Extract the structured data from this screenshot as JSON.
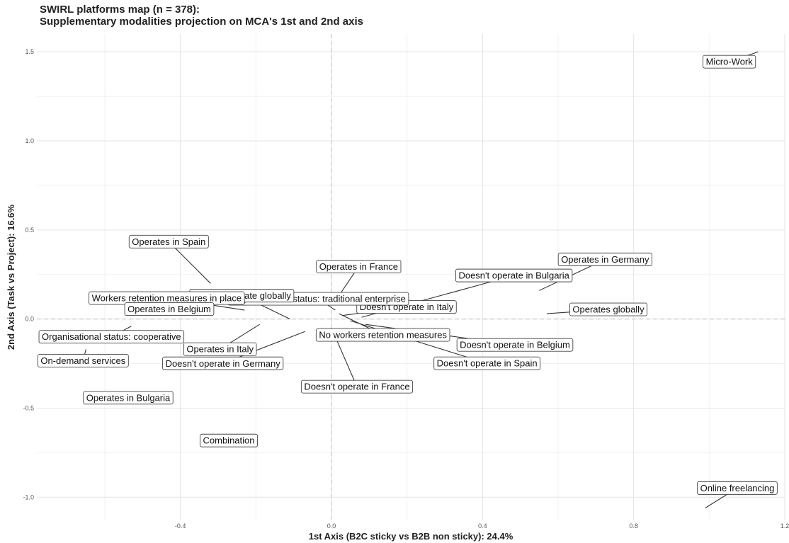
{
  "chart_data": {
    "type": "scatter",
    "title": "SWIRL platforms map (n = 378):",
    "subtitle": "Supplementary modalities projection on MCA's 1st and 2nd axis",
    "xlabel": "1st Axis (B2C sticky vs B2B non sticky): 24.4%",
    "ylabel": "2nd Axis (Task vs Project): 16.6%",
    "xlim": [
      -0.78,
      1.2
    ],
    "ylim": [
      -1.13,
      1.6
    ],
    "x_ticks": [
      -0.4,
      0.0,
      0.4,
      0.8,
      1.2
    ],
    "x_tick_labels": [
      "-0.4",
      "0.0",
      "0.4",
      "0.8",
      "1.2"
    ],
    "y_ticks": [
      -1.0,
      -0.5,
      0.0,
      0.5,
      1.0,
      1.5
    ],
    "y_tick_labels": [
      "-1.0",
      "-0.5",
      "0.0",
      "0.5",
      "1.0",
      "1.5"
    ],
    "grid": true,
    "reference_lines": [
      0,
      0
    ],
    "points": [
      {
        "label": "Micro-Work",
        "x": 1.13,
        "y": 1.5
      },
      {
        "label": "Online freelancing",
        "x": 0.99,
        "y": -1.06
      },
      {
        "label": "Operates globally",
        "x": 0.57,
        "y": 0.03
      },
      {
        "label": "Operates in Germany",
        "x": 0.55,
        "y": 0.16
      },
      {
        "label": "Doesn't operate in Bulgaria",
        "x": 0.08,
        "y": 0.01
      },
      {
        "label": "Doesn't operate in Italy",
        "x": 0.03,
        "y": 0.02
      },
      {
        "label": "Doesn't operate in Belgium",
        "x": 0.09,
        "y": -0.03
      },
      {
        "label": "Doesn't operate in Spain",
        "x": 0.05,
        "y": -0.01
      },
      {
        "label": "No workers retention measures",
        "x": 0.02,
        "y": 0.03
      },
      {
        "label": "Doesn't operate in France",
        "x": 0.0,
        "y": -0.05
      },
      {
        "label": "Operates in France",
        "x": 0.01,
        "y": 0.1
      },
      {
        "label": "Organisational status: traditional enterprise",
        "x": 0.01,
        "y": 0.05
      },
      {
        "label": "Doesn't operate globally",
        "x": -0.11,
        "y": 0.0
      },
      {
        "label": "Doesn't operate in Germany",
        "x": -0.07,
        "y": -0.07
      },
      {
        "label": "Operates in Italy",
        "x": -0.19,
        "y": -0.03
      },
      {
        "label": "Operates in Spain",
        "x": -0.32,
        "y": 0.2
      },
      {
        "label": "Workers retention measures in place",
        "x": -0.23,
        "y": 0.05
      },
      {
        "label": "Operates in Belgium",
        "x": -0.33,
        "y": 0.06
      },
      {
        "label": "Organisational status: cooperative",
        "x": -0.53,
        "y": -0.04
      },
      {
        "label": "On-demand services",
        "x": -0.65,
        "y": -0.17
      },
      {
        "label": "Operates in Bulgaria",
        "x": -0.48,
        "y": -0.43
      },
      {
        "label": "Combination",
        "x": -0.24,
        "y": -0.67
      }
    ]
  }
}
